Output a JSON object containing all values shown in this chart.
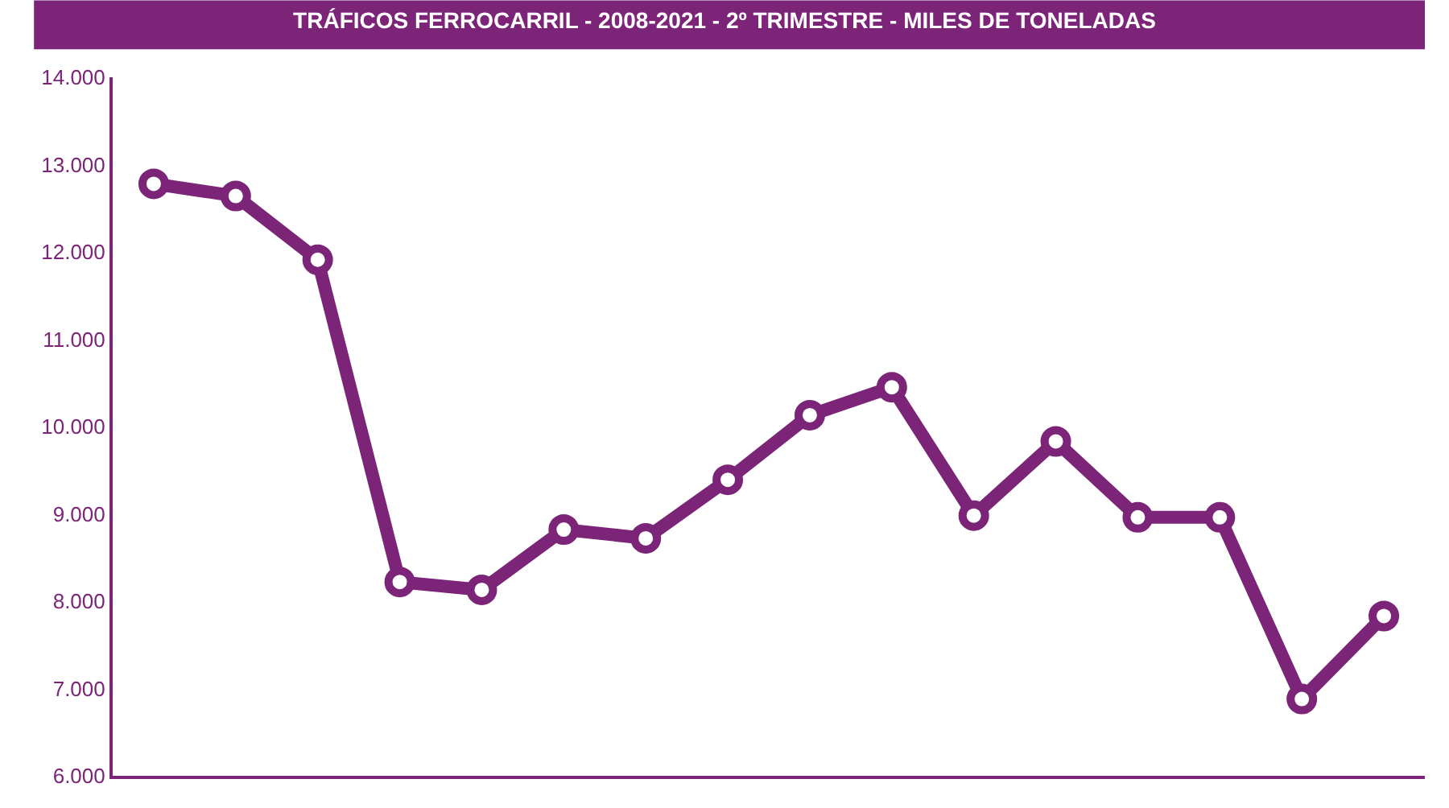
{
  "chart_data": {
    "type": "line",
    "title": "TRÁFICOS FERROCARRIL - 2008-2021 - 2º TRIMESTRE - MILES DE TONELADAS",
    "categories": [
      null,
      null,
      null,
      null,
      null,
      null,
      null,
      null,
      null,
      null,
      null,
      null,
      null,
      null,
      null,
      null
    ],
    "series": [
      {
        "color": "#7b2478",
        "values": [
          12780,
          12640,
          11910,
          8220,
          8130,
          8820,
          8720,
          9390,
          10130,
          10450,
          8980,
          9830,
          8960,
          8960,
          6880,
          7830
        ]
      }
    ],
    "ylim": [
      6000,
      14000
    ],
    "yticks": [
      {
        "value": 6000,
        "label": "6.000"
      },
      {
        "value": 7000,
        "label": "7.000"
      },
      {
        "value": 8000,
        "label": "8.000"
      },
      {
        "value": 9000,
        "label": "9.000"
      },
      {
        "value": 10000,
        "label": "10.000"
      },
      {
        "value": 11000,
        "label": "11.000"
      },
      {
        "value": 12000,
        "label": "12.000"
      },
      {
        "value": 13000,
        "label": "13.000"
      },
      {
        "value": 14000,
        "label": "14.000"
      }
    ],
    "marker": "circle",
    "line_style": "solid",
    "tick_labels": "y"
  }
}
